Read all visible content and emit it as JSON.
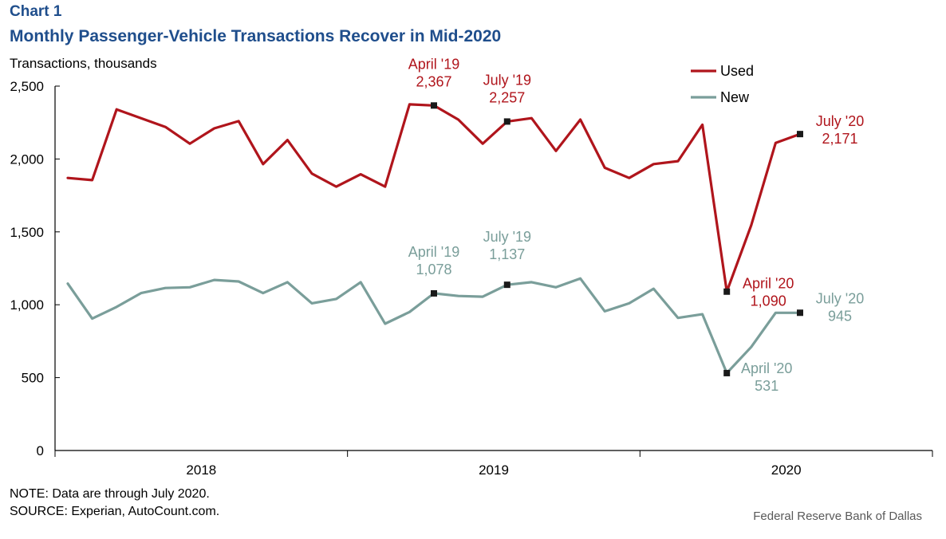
{
  "header": {
    "chart_label": "Chart 1",
    "title": "Monthly Passenger-Vehicle Transactions Recover in Mid-2020",
    "units": "Transactions,  thousands"
  },
  "footer": {
    "note": "NOTE: Data are through July 2020.",
    "source": "SOURCE:  Experian, AutoCount.com.",
    "credit": "Federal Reserve  Bank of Dallas"
  },
  "colors": {
    "used": "#b0151c",
    "new": "#7a9e9a",
    "marker": "#1a1a1a",
    "axis": "#000000"
  },
  "chart_data": {
    "type": "line",
    "title": "Monthly Passenger-Vehicle Transactions Recover in Mid-2020",
    "ylabel": "Transactions,  thousands",
    "xlabel": "",
    "ylim": [
      0,
      2500
    ],
    "yticks": [
      0,
      500,
      1000,
      1500,
      2000,
      2500
    ],
    "ytick_labels": [
      "0",
      "500",
      "1,000",
      "1,500",
      "2,000",
      "2,500"
    ],
    "x_groups": [
      {
        "label": "2018",
        "months": 12
      },
      {
        "label": "2019",
        "months": 12
      },
      {
        "label": "2020",
        "months": 12
      }
    ],
    "x": [
      "Jan 2018",
      "Feb 2018",
      "Mar 2018",
      "Apr 2018",
      "May 2018",
      "Jun 2018",
      "Jul 2018",
      "Aug 2018",
      "Sep 2018",
      "Oct 2018",
      "Nov 2018",
      "Dec 2018",
      "Jan 2019",
      "Feb 2019",
      "Mar 2019",
      "Apr 2019",
      "May 2019",
      "Jun 2019",
      "Jul 2019",
      "Aug 2019",
      "Sep 2019",
      "Oct 2019",
      "Nov 2019",
      "Dec 2019",
      "Jan 2020",
      "Feb 2020",
      "Mar 2020",
      "Apr 2020",
      "May 2020",
      "Jun 2020",
      "Jul 2020"
    ],
    "grid": false,
    "legend_position": "top-right",
    "series": [
      {
        "name": "Used",
        "color_key": "used",
        "values": [
          1870,
          1855,
          2340,
          2280,
          2220,
          2105,
          2210,
          2260,
          1965,
          2130,
          1900,
          1810,
          1895,
          1810,
          2375,
          2367,
          2270,
          2105,
          2257,
          2280,
          2055,
          2270,
          1940,
          1870,
          1965,
          1985,
          2235,
          1090,
          1545,
          2110,
          2171
        ]
      },
      {
        "name": "New",
        "color_key": "new",
        "values": [
          1145,
          905,
          985,
          1080,
          1115,
          1120,
          1170,
          1160,
          1080,
          1155,
          1010,
          1040,
          1155,
          870,
          950,
          1078,
          1060,
          1055,
          1137,
          1155,
          1120,
          1180,
          955,
          1010,
          1110,
          910,
          935,
          531,
          710,
          945,
          945
        ]
      }
    ],
    "annotations": [
      {
        "series": "Used",
        "index": 15,
        "label": "April '19",
        "value": "2,367"
      },
      {
        "series": "Used",
        "index": 18,
        "label": "July '19",
        "value": "2,257"
      },
      {
        "series": "Used",
        "index": 27,
        "label": "April '20",
        "value": "1,090"
      },
      {
        "series": "Used",
        "index": 30,
        "label": "July '20",
        "value": "2,171"
      },
      {
        "series": "New",
        "index": 15,
        "label": "April '19",
        "value": "1,078"
      },
      {
        "series": "New",
        "index": 18,
        "label": "July '19",
        "value": "1,137"
      },
      {
        "series": "New",
        "index": 27,
        "label": "April '20",
        "value": "531"
      },
      {
        "series": "New",
        "index": 30,
        "label": "July '20",
        "value": "945"
      }
    ]
  }
}
